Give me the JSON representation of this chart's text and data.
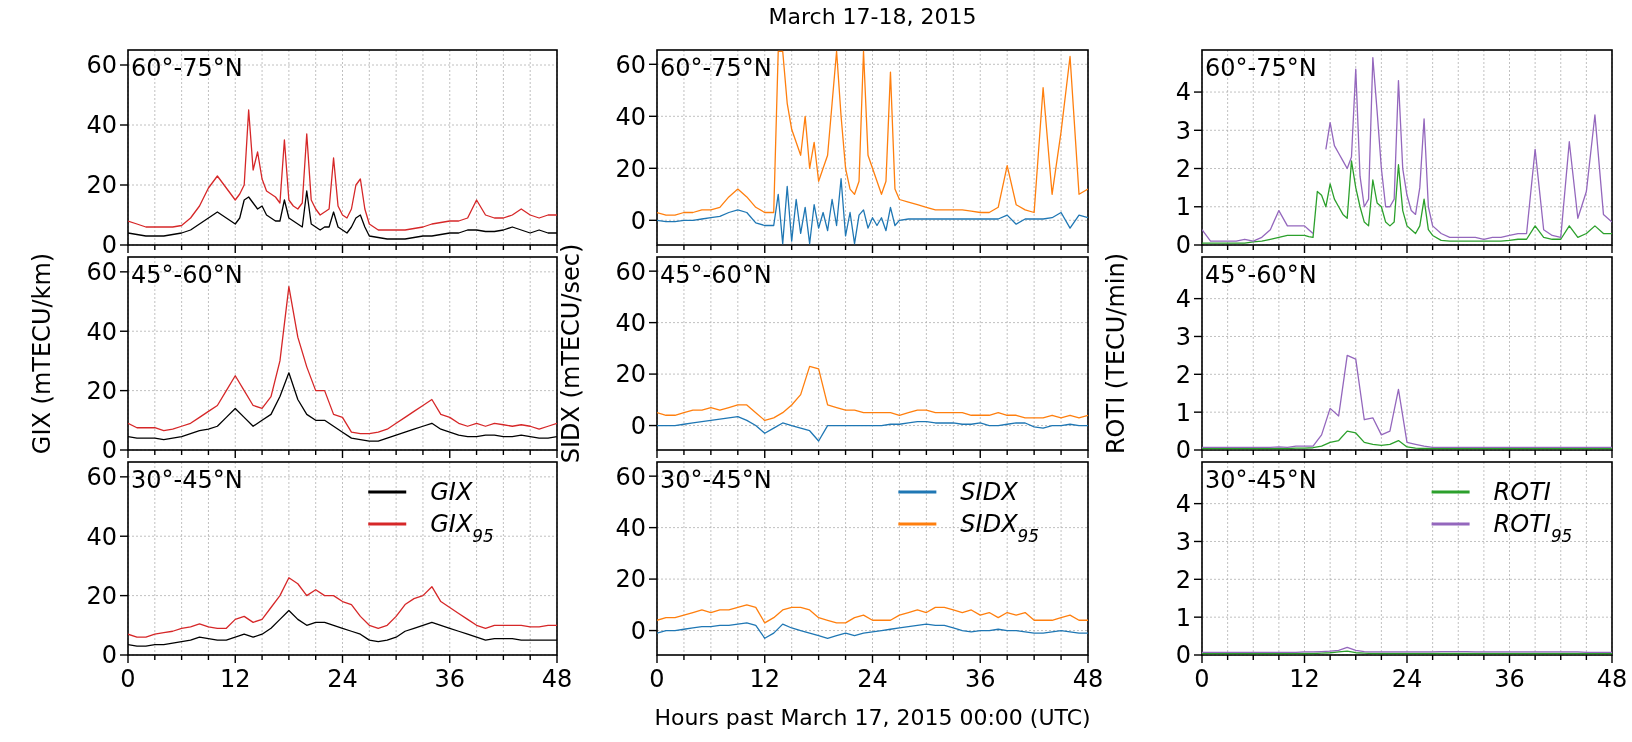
{
  "chart_data": [
    {
      "type": "line",
      "annotations": [
        "60°-75°N"
      ],
      "x": [
        0,
        1,
        2,
        3,
        4,
        5,
        6,
        7,
        8,
        9,
        10,
        11,
        12,
        12.5,
        13,
        13.5,
        14,
        14.5,
        15,
        15.5,
        16,
        16.5,
        17,
        17.5,
        18,
        18.5,
        19,
        19.5,
        20,
        20.5,
        21,
        21.5,
        22,
        22.5,
        23,
        23.5,
        24,
        24.5,
        25,
        25.5,
        26,
        26.5,
        27,
        28,
        29,
        30,
        31,
        32,
        33,
        34,
        35,
        36,
        37,
        38,
        39,
        40,
        41,
        42,
        43,
        44,
        45,
        46,
        47,
        48
      ],
      "series": [
        {
          "color": "#000000",
          "values": [
            4,
            3.5,
            3,
            3,
            3,
            3.5,
            4,
            5,
            7,
            9,
            11,
            9,
            7,
            9,
            15,
            16,
            14,
            12,
            13,
            10,
            9,
            8,
            8,
            15,
            9,
            8,
            7,
            6,
            18,
            7,
            6,
            5,
            6,
            6,
            11,
            6,
            5,
            4,
            6,
            9,
            10,
            6,
            3,
            2.5,
            2,
            2,
            2,
            2.5,
            3,
            3,
            3.5,
            4,
            4,
            5,
            5,
            4.5,
            4.5,
            5,
            6,
            5,
            4,
            5,
            4,
            4
          ]
        },
        {
          "color": "#d62728",
          "values": [
            8,
            7,
            6,
            6,
            6,
            6,
            6.5,
            9,
            13,
            19,
            23,
            19,
            15,
            17,
            20,
            45,
            25,
            31,
            22,
            18,
            17,
            16,
            14,
            35,
            15,
            13,
            12,
            14,
            37,
            15,
            12,
            10,
            11,
            12,
            29,
            13,
            10,
            9,
            12,
            20,
            22,
            12,
            7,
            5,
            5,
            5,
            5,
            5.5,
            6,
            7,
            7.5,
            8,
            8,
            9,
            15,
            10,
            9,
            9,
            10,
            12,
            10,
            9,
            10,
            10
          ]
        }
      ],
      "xlim": [
        0,
        48
      ],
      "xticks": [
        0,
        {
          "value": 3,
          "label": null
        },
        {
          "value": 6,
          "label": null
        },
        {
          "value": 9,
          "label": null
        },
        12,
        {
          "value": 15,
          "label": null
        },
        {
          "value": 18,
          "label": null
        },
        {
          "value": 21,
          "label": null
        },
        24,
        {
          "value": 27,
          "label": null
        },
        {
          "value": 30,
          "label": null
        },
        {
          "value": 33,
          "label": null
        },
        36,
        {
          "value": 39,
          "label": null
        },
        {
          "value": 42,
          "label": null
        },
        {
          "value": 45,
          "label": null
        },
        48
      ],
      "ylim": [
        0,
        65
      ],
      "yticks": [
        0,
        20,
        40,
        60
      ],
      "grid": true,
      "tick_labels": "y"
    },
    {
      "type": "line",
      "title": "March 17-18, 2015",
      "annotations": [
        "60°-75°N"
      ],
      "x": [
        0,
        1,
        2,
        3,
        4,
        5,
        6,
        7,
        8,
        9,
        10,
        11,
        12,
        12.5,
        13,
        13.5,
        14,
        14.5,
        15,
        15.5,
        16,
        16.5,
        17,
        17.5,
        18,
        18.5,
        19,
        19.5,
        20,
        20.5,
        21,
        21.5,
        22,
        22.5,
        23,
        23.5,
        24,
        24.5,
        25,
        25.5,
        26,
        26.5,
        27,
        28,
        29,
        30,
        31,
        32,
        33,
        34,
        35,
        36,
        37,
        38,
        39,
        40,
        41,
        42,
        43,
        44,
        45,
        46,
        47,
        48
      ],
      "series": [
        {
          "color": "#1f77b4",
          "values": [
            0,
            -0.5,
            -0.5,
            0,
            0,
            0.5,
            1,
            1.5,
            3,
            4,
            3,
            -1,
            -2,
            -2,
            -2,
            10,
            -9,
            13,
            -8,
            8,
            -5,
            5,
            -9,
            6,
            -3,
            3,
            -4,
            8,
            -2,
            16,
            -6,
            3,
            -9,
            2,
            4,
            -3,
            1,
            -2,
            1,
            -4,
            5,
            -2,
            0,
            0.5,
            0.5,
            0.5,
            0.5,
            0.5,
            0.5,
            0.5,
            0.5,
            0.5,
            0.5,
            0.5,
            2,
            -1.5,
            0.5,
            0.5,
            0.5,
            1,
            3,
            -3,
            2,
            1
          ]
        },
        {
          "color": "#ff7f0e",
          "values": [
            3,
            2,
            2,
            3,
            3,
            4,
            4,
            5,
            9,
            12,
            9,
            5,
            3,
            3,
            3,
            65,
            65,
            45,
            35,
            30,
            25,
            40,
            20,
            30,
            15,
            20,
            25,
            45,
            65,
            40,
            20,
            12,
            10,
            15,
            65,
            25,
            20,
            15,
            10,
            15,
            57,
            12,
            8,
            7,
            6,
            5,
            4,
            4,
            4,
            4,
            3.5,
            3,
            3,
            5,
            21,
            6,
            4,
            3,
            51,
            10,
            34,
            63,
            10,
            12
          ]
        }
      ],
      "xlim": [
        0,
        48
      ],
      "xticks": [
        0,
        {
          "value": 3,
          "label": null
        },
        {
          "value": 6,
          "label": null
        },
        {
          "value": 9,
          "label": null
        },
        12,
        {
          "value": 15,
          "label": null
        },
        {
          "value": 18,
          "label": null
        },
        {
          "value": 21,
          "label": null
        },
        24,
        {
          "value": 27,
          "label": null
        },
        {
          "value": 30,
          "label": null
        },
        {
          "value": 33,
          "label": null
        },
        36,
        {
          "value": 39,
          "label": null
        },
        {
          "value": 42,
          "label": null
        },
        {
          "value": 45,
          "label": null
        },
        48
      ],
      "ylim": [
        -9.5,
        65.5
      ],
      "yticks": [
        0,
        20,
        40,
        60
      ],
      "grid": true,
      "tick_labels": "y"
    },
    {
      "type": "line",
      "annotations": [
        "60°-75°N"
      ],
      "x": [
        0,
        1,
        2,
        3,
        4,
        5,
        6,
        7,
        8,
        9,
        10,
        11,
        12,
        12.5,
        13,
        13.5,
        14,
        14.5,
        15,
        15.5,
        16,
        16.5,
        17,
        17.5,
        18,
        18.5,
        19,
        19.5,
        20,
        20.5,
        21,
        21.5,
        22,
        22.5,
        23,
        23.5,
        24,
        24.5,
        25,
        25.5,
        26,
        26.5,
        27,
        28,
        29,
        30,
        31,
        32,
        33,
        34,
        35,
        36,
        37,
        38,
        39,
        40,
        41,
        42,
        43,
        44,
        45,
        46,
        47,
        48
      ],
      "series": [
        {
          "color": "#2ca02c",
          "values": [
            0.05,
            0.05,
            0.05,
            0.05,
            0.05,
            0.05,
            0.08,
            0.1,
            0.15,
            0.2,
            0.25,
            0.25,
            0.25,
            0.22,
            0.2,
            1.4,
            1.3,
            1,
            1.6,
            1.2,
            1,
            0.8,
            0.7,
            2.2,
            1.5,
            1,
            0.6,
            0.5,
            1.7,
            1.1,
            1,
            0.6,
            0.5,
            0.6,
            2.1,
            0.9,
            0.5,
            0.4,
            0.3,
            0.5,
            1.2,
            0.4,
            0.25,
            0.12,
            0.1,
            0.1,
            0.1,
            0.1,
            0.1,
            0.1,
            0.1,
            0.12,
            0.15,
            0.15,
            0.5,
            0.2,
            0.15,
            0.15,
            0.5,
            0.2,
            0.3,
            0.5,
            0.3,
            0.3
          ]
        },
        {
          "color": "#9467bd",
          "values": [
            0.4,
            0.1,
            0.1,
            0.1,
            0.1,
            0.15,
            0.1,
            0.2,
            0.4,
            0.9,
            0.5,
            0.5,
            0.5,
            0.4,
            0.3,
            null,
            null,
            2.5,
            3.2,
            2.6,
            2.4,
            2.2,
            2,
            2.3,
            4.6,
            1.8,
            1,
            1.2,
            4.9,
            3.5,
            2,
            1,
            1,
            1.2,
            4.3,
            2,
            1.3,
            0.9,
            0.8,
            1.5,
            3.3,
            1,
            0.5,
            0.3,
            0.2,
            0.2,
            0.2,
            0.2,
            0.15,
            0.2,
            0.2,
            0.25,
            0.3,
            0.3,
            2.5,
            0.4,
            0.25,
            0.2,
            2.7,
            0.7,
            1.4,
            3.4,
            0.8,
            0.6
          ]
        }
      ],
      "xlim": [
        0,
        48
      ],
      "xticks": [
        0,
        {
          "value": 3,
          "label": null
        },
        {
          "value": 6,
          "label": null
        },
        {
          "value": 9,
          "label": null
        },
        12,
        {
          "value": 15,
          "label": null
        },
        {
          "value": 18,
          "label": null
        },
        {
          "value": 21,
          "label": null
        },
        24,
        {
          "value": 27,
          "label": null
        },
        {
          "value": 30,
          "label": null
        },
        {
          "value": 33,
          "label": null
        },
        36,
        {
          "value": 39,
          "label": null
        },
        {
          "value": 42,
          "label": null
        },
        {
          "value": 45,
          "label": null
        },
        48
      ],
      "ylim": [
        0,
        5.1
      ],
      "yticks": [
        0,
        1,
        2,
        3,
        4
      ],
      "grid": true,
      "tick_labels": "y"
    },
    {
      "type": "line",
      "ylabel": "GIX (mTECU/km)",
      "annotations": [
        "45°-60°N"
      ],
      "x": [
        0,
        1,
        2,
        3,
        4,
        5,
        6,
        7,
        8,
        9,
        10,
        11,
        12,
        13,
        14,
        15,
        16,
        17,
        18,
        19,
        20,
        21,
        22,
        23,
        24,
        25,
        26,
        27,
        28,
        29,
        30,
        31,
        32,
        33,
        34,
        35,
        36,
        37,
        38,
        39,
        40,
        41,
        42,
        43,
        44,
        45,
        46,
        47,
        48
      ],
      "series": [
        {
          "color": "#000000",
          "values": [
            4.5,
            4,
            4,
            4,
            3.5,
            4,
            4.5,
            5.5,
            6.5,
            7,
            8,
            11,
            14,
            11,
            8,
            10,
            12,
            18,
            26,
            17,
            12,
            10,
            10,
            8,
            6,
            4,
            3.5,
            3,
            3,
            4,
            5,
            6,
            7,
            8,
            9,
            7,
            6,
            5,
            4.5,
            4.5,
            5,
            5,
            4.5,
            4.5,
            5,
            4.5,
            4,
            4,
            4.5
          ]
        },
        {
          "color": "#d62728",
          "values": [
            9,
            7.5,
            7.5,
            7.5,
            6.5,
            7,
            8,
            9,
            11,
            13,
            15,
            20,
            25,
            20,
            15,
            14,
            18,
            30,
            55,
            38,
            28,
            20,
            20,
            12,
            11,
            6,
            5.5,
            5.5,
            6,
            7,
            9,
            11,
            13,
            15,
            17,
            12,
            11,
            9,
            8,
            9,
            8,
            9,
            8.5,
            8,
            8.5,
            8,
            7,
            8,
            9
          ]
        }
      ],
      "xlim": [
        0,
        48
      ],
      "xticks": [
        0,
        {
          "value": 3,
          "label": null
        },
        {
          "value": 6,
          "label": null
        },
        {
          "value": 9,
          "label": null
        },
        12,
        {
          "value": 15,
          "label": null
        },
        {
          "value": 18,
          "label": null
        },
        {
          "value": 21,
          "label": null
        },
        24,
        {
          "value": 27,
          "label": null
        },
        {
          "value": 30,
          "label": null
        },
        {
          "value": 33,
          "label": null
        },
        36,
        {
          "value": 39,
          "label": null
        },
        {
          "value": 42,
          "label": null
        },
        {
          "value": 45,
          "label": null
        },
        48
      ],
      "ylim": [
        0,
        65
      ],
      "yticks": [
        0,
        20,
        40,
        60
      ],
      "grid": true,
      "tick_labels": "y"
    },
    {
      "type": "line",
      "ylabel": "SIDX (mTECU/sec)",
      "annotations": [
        "45°-60°N"
      ],
      "x": [
        0,
        1,
        2,
        3,
        4,
        5,
        6,
        7,
        8,
        9,
        10,
        11,
        12,
        13,
        14,
        15,
        16,
        17,
        18,
        19,
        20,
        21,
        22,
        23,
        24,
        25,
        26,
        27,
        28,
        29,
        30,
        31,
        32,
        33,
        34,
        35,
        36,
        37,
        38,
        39,
        40,
        41,
        42,
        43,
        44,
        45,
        46,
        47,
        48
      ],
      "series": [
        {
          "color": "#1f77b4",
          "values": [
            0,
            0,
            0,
            0.5,
            1,
            1.5,
            2,
            2.5,
            3,
            3.5,
            2,
            0,
            -3,
            -1,
            1,
            0,
            -1,
            -2,
            -6,
            0,
            0,
            0,
            0,
            0,
            0,
            0,
            0.5,
            0.5,
            1,
            1.5,
            1.5,
            1,
            1,
            1,
            0.5,
            0.5,
            1,
            0,
            0,
            0.5,
            1,
            1,
            -0.5,
            -1,
            0,
            0,
            0.5,
            0,
            0
          ]
        },
        {
          "color": "#ff7f0e",
          "values": [
            5,
            4,
            4,
            5,
            6,
            6,
            7,
            6,
            7,
            8,
            8,
            5,
            2,
            3,
            5,
            8,
            12,
            23,
            22,
            8,
            7,
            6,
            6,
            5,
            5,
            5,
            5,
            4,
            5,
            6,
            6,
            5,
            5,
            5,
            5,
            4,
            4,
            4,
            5,
            4,
            4,
            3,
            3,
            3,
            4,
            3,
            4,
            3,
            4
          ]
        }
      ],
      "xlim": [
        0,
        48
      ],
      "xticks": [
        0,
        {
          "value": 3,
          "label": null
        },
        {
          "value": 6,
          "label": null
        },
        {
          "value": 9,
          "label": null
        },
        12,
        {
          "value": 15,
          "label": null
        },
        {
          "value": 18,
          "label": null
        },
        {
          "value": 21,
          "label": null
        },
        24,
        {
          "value": 27,
          "label": null
        },
        {
          "value": 30,
          "label": null
        },
        {
          "value": 33,
          "label": null
        },
        36,
        {
          "value": 39,
          "label": null
        },
        {
          "value": 42,
          "label": null
        },
        {
          "value": 45,
          "label": null
        },
        48
      ],
      "ylim": [
        -9.5,
        65.5
      ],
      "yticks": [
        0,
        20,
        40,
        60
      ],
      "grid": true,
      "tick_labels": "y"
    },
    {
      "type": "line",
      "ylabel": "ROTI (TECU/min)",
      "annotations": [
        "45°-60°N"
      ],
      "x": [
        0,
        1,
        2,
        3,
        4,
        5,
        6,
        7,
        8,
        9,
        10,
        11,
        12,
        13,
        14,
        15,
        16,
        17,
        18,
        19,
        20,
        21,
        22,
        23,
        24,
        25,
        26,
        27,
        28,
        29,
        30,
        31,
        32,
        33,
        34,
        35,
        36,
        37,
        38,
        39,
        40,
        41,
        42,
        43,
        44,
        45,
        46,
        47,
        48
      ],
      "series": [
        {
          "color": "#2ca02c",
          "values": [
            0.04,
            0.04,
            0.04,
            0.04,
            0.04,
            0.04,
            0.04,
            0.04,
            0.04,
            0.04,
            0.04,
            0.05,
            0.05,
            0.06,
            0.1,
            0.2,
            0.25,
            0.5,
            0.45,
            0.2,
            0.15,
            0.12,
            0.15,
            0.25,
            0.08,
            0.05,
            0.04,
            0.04,
            0.04,
            0.04,
            0.04,
            0.04,
            0.04,
            0.04,
            0.04,
            0.04,
            0.04,
            0.04,
            0.04,
            0.04,
            0.04,
            0.04,
            0.04,
            0.04,
            0.04,
            0.04,
            0.04,
            0.04,
            0.04
          ]
        },
        {
          "color": "#9467bd",
          "values": [
            0.07,
            0.07,
            0.07,
            0.07,
            0.07,
            0.07,
            0.07,
            0.07,
            0.07,
            0.08,
            0.07,
            0.1,
            0.1,
            0.1,
            0.4,
            1.1,
            0.9,
            2.5,
            2.4,
            0.8,
            0.85,
            0.4,
            0.5,
            1.6,
            0.2,
            0.15,
            0.1,
            0.07,
            0.07,
            0.07,
            0.07,
            0.07,
            0.07,
            0.07,
            0.07,
            0.07,
            0.07,
            0.07,
            0.07,
            0.07,
            0.07,
            0.07,
            0.07,
            0.07,
            0.07,
            0.07,
            0.07,
            0.07,
            0.07
          ]
        }
      ],
      "xlim": [
        0,
        48
      ],
      "xticks": [
        0,
        {
          "value": 3,
          "label": null
        },
        {
          "value": 6,
          "label": null
        },
        {
          "value": 9,
          "label": null
        },
        12,
        {
          "value": 15,
          "label": null
        },
        {
          "value": 18,
          "label": null
        },
        {
          "value": 21,
          "label": null
        },
        24,
        {
          "value": 27,
          "label": null
        },
        {
          "value": 30,
          "label": null
        },
        {
          "value": 33,
          "label": null
        },
        36,
        {
          "value": 39,
          "label": null
        },
        {
          "value": 42,
          "label": null
        },
        {
          "value": 45,
          "label": null
        },
        48
      ],
      "ylim": [
        0,
        5.1
      ],
      "yticks": [
        0,
        1,
        2,
        3,
        4
      ],
      "grid": true,
      "tick_labels": "y"
    },
    {
      "type": "line",
      "annotations": [
        "30°-45°N"
      ],
      "legend": "top right",
      "x": [
        0,
        1,
        2,
        3,
        4,
        5,
        6,
        7,
        8,
        9,
        10,
        11,
        12,
        13,
        14,
        15,
        16,
        17,
        18,
        19,
        20,
        21,
        22,
        23,
        24,
        25,
        26,
        27,
        28,
        29,
        30,
        31,
        32,
        33,
        34,
        35,
        36,
        37,
        38,
        39,
        40,
        41,
        42,
        43,
        44,
        45,
        46,
        47,
        48
      ],
      "series": [
        {
          "name": "GIX",
          "color": "#000000",
          "values": [
            3.5,
            3,
            3,
            3.5,
            3.5,
            4,
            4.5,
            5,
            6,
            5.5,
            5,
            5,
            6,
            7,
            6,
            7,
            9,
            12,
            15,
            12,
            10,
            11,
            11,
            10,
            9,
            8,
            7,
            5,
            4.5,
            5,
            6,
            8,
            9,
            10,
            11,
            10,
            9,
            8,
            7,
            6,
            5,
            5.5,
            5.5,
            5.5,
            5,
            5,
            5,
            5,
            5
          ]
        },
        {
          "name": "GIX$_{95}$",
          "color": "#d62728",
          "values": [
            7,
            6,
            6,
            7,
            7.5,
            8,
            9,
            9.5,
            10.5,
            9.5,
            9,
            9,
            12,
            13,
            11,
            12,
            16,
            20,
            26,
            24,
            20,
            22,
            20,
            20,
            18,
            17,
            13,
            10,
            9,
            10,
            13,
            17,
            19,
            20,
            23,
            18,
            16,
            14,
            12,
            10,
            9,
            10,
            10,
            10,
            10,
            9.5,
            9.5,
            10,
            10
          ]
        }
      ],
      "xlim": [
        0,
        48
      ],
      "xticks": [
        0,
        {
          "value": 3,
          "label": null
        },
        {
          "value": 6,
          "label": null
        },
        {
          "value": 9,
          "label": null
        },
        12,
        {
          "value": 15,
          "label": null
        },
        {
          "value": 18,
          "label": null
        },
        {
          "value": 21,
          "label": null
        },
        24,
        {
          "value": 27,
          "label": null
        },
        {
          "value": 30,
          "label": null
        },
        {
          "value": 33,
          "label": null
        },
        36,
        {
          "value": 39,
          "label": null
        },
        {
          "value": 42,
          "label": null
        },
        {
          "value": 45,
          "label": null
        },
        48
      ],
      "ylim": [
        0,
        65
      ],
      "yticks": [
        0,
        20,
        40,
        60
      ],
      "grid": true
    },
    {
      "type": "line",
      "xlabel": "Hours past March 17, 2015 00:00 (UTC)",
      "annotations": [
        "30°-45°N"
      ],
      "legend": "top right",
      "x": [
        0,
        1,
        2,
        3,
        4,
        5,
        6,
        7,
        8,
        9,
        10,
        11,
        12,
        13,
        14,
        15,
        16,
        17,
        18,
        19,
        20,
        21,
        22,
        23,
        24,
        25,
        26,
        27,
        28,
        29,
        30,
        31,
        32,
        33,
        34,
        35,
        36,
        37,
        38,
        39,
        40,
        41,
        42,
        43,
        44,
        45,
        46,
        47,
        48
      ],
      "series": [
        {
          "name": "SIDX",
          "color": "#1f77b4",
          "values": [
            -1,
            0,
            0,
            0.5,
            1,
            1.5,
            1.5,
            2,
            2,
            2.5,
            3,
            2,
            -3,
            -1,
            2.5,
            1,
            0,
            -1,
            -2,
            -3,
            -2,
            -1,
            -2,
            -1,
            -0.5,
            0,
            0.5,
            1,
            1.5,
            2,
            2.5,
            2,
            2,
            1,
            0,
            -0.5,
            0,
            0,
            0.5,
            0,
            0,
            -0.5,
            -1,
            -1,
            -0.5,
            0,
            -0.5,
            -1,
            -1
          ]
        },
        {
          "name": "SIDX$_{95}$",
          "color": "#ff7f0e",
          "values": [
            4,
            5,
            5,
            6,
            7,
            8,
            7,
            8,
            8,
            9,
            10,
            9,
            3,
            5,
            8,
            9,
            9,
            8,
            5,
            4,
            3,
            3,
            5,
            6,
            4,
            4,
            4,
            6,
            7,
            8,
            7,
            9,
            9,
            8,
            7,
            8,
            6,
            7,
            5,
            7,
            6,
            7,
            4,
            4,
            4,
            5,
            6,
            4,
            4
          ]
        }
      ],
      "xlim": [
        0,
        48
      ],
      "xticks": [
        0,
        {
          "value": 3,
          "label": null
        },
        {
          "value": 6,
          "label": null
        },
        {
          "value": 9,
          "label": null
        },
        12,
        {
          "value": 15,
          "label": null
        },
        {
          "value": 18,
          "label": null
        },
        {
          "value": 21,
          "label": null
        },
        24,
        {
          "value": 27,
          "label": null
        },
        {
          "value": 30,
          "label": null
        },
        {
          "value": 33,
          "label": null
        },
        36,
        {
          "value": 39,
          "label": null
        },
        {
          "value": 42,
          "label": null
        },
        {
          "value": 45,
          "label": null
        },
        48
      ],
      "ylim": [
        -9.5,
        65.5
      ],
      "yticks": [
        0,
        20,
        40,
        60
      ],
      "grid": true
    },
    {
      "type": "line",
      "annotations": [
        "30°-45°N"
      ],
      "legend": "top right",
      "x": [
        0,
        1,
        2,
        3,
        4,
        5,
        6,
        7,
        8,
        9,
        10,
        11,
        12,
        13,
        14,
        15,
        16,
        17,
        18,
        19,
        20,
        21,
        22,
        23,
        24,
        25,
        26,
        27,
        28,
        29,
        30,
        31,
        32,
        33,
        34,
        35,
        36,
        37,
        38,
        39,
        40,
        41,
        42,
        43,
        44,
        45,
        46,
        47,
        48
      ],
      "series": [
        {
          "name": "ROTI",
          "color": "#2ca02c",
          "values": [
            0.04,
            0.04,
            0.04,
            0.04,
            0.04,
            0.04,
            0.04,
            0.04,
            0.04,
            0.04,
            0.04,
            0.04,
            0.04,
            0.04,
            0.05,
            0.06,
            0.08,
            0.1,
            0.06,
            0.05,
            0.04,
            0.04,
            0.04,
            0.04,
            0.04,
            0.04,
            0.04,
            0.04,
            0.04,
            0.04,
            0.04,
            0.04,
            0.04,
            0.04,
            0.04,
            0.04,
            0.04,
            0.04,
            0.04,
            0.04,
            0.04,
            0.04,
            0.04,
            0.04,
            0.04,
            0.04,
            0.04,
            0.04,
            0.04
          ]
        },
        {
          "name": "ROTI$_{95}$",
          "color": "#9467bd",
          "values": [
            0.07,
            0.07,
            0.07,
            0.07,
            0.07,
            0.07,
            0.07,
            0.07,
            0.07,
            0.07,
            0.07,
            0.07,
            0.08,
            0.08,
            0.09,
            0.1,
            0.12,
            0.2,
            0.12,
            0.09,
            0.08,
            0.08,
            0.08,
            0.08,
            0.08,
            0.08,
            0.08,
            0.08,
            0.09,
            0.09,
            0.09,
            0.09,
            0.08,
            0.08,
            0.08,
            0.08,
            0.08,
            0.08,
            0.08,
            0.08,
            0.08,
            0.08,
            0.08,
            0.08,
            0.08,
            0.07,
            0.07,
            0.07,
            0.07
          ]
        }
      ],
      "xlim": [
        0,
        48
      ],
      "xticks": [
        0,
        {
          "value": 3,
          "label": null
        },
        {
          "value": 6,
          "label": null
        },
        {
          "value": 9,
          "label": null
        },
        12,
        {
          "value": 15,
          "label": null
        },
        {
          "value": 18,
          "label": null
        },
        {
          "value": 21,
          "label": null
        },
        24,
        {
          "value": 27,
          "label": null
        },
        {
          "value": 30,
          "label": null
        },
        {
          "value": 33,
          "label": null
        },
        36,
        {
          "value": 39,
          "label": null
        },
        {
          "value": 42,
          "label": null
        },
        {
          "value": 45,
          "label": null
        },
        48
      ],
      "ylim": [
        0,
        5.1
      ],
      "yticks": [
        0,
        1,
        2,
        3,
        4
      ],
      "grid": true
    }
  ]
}
